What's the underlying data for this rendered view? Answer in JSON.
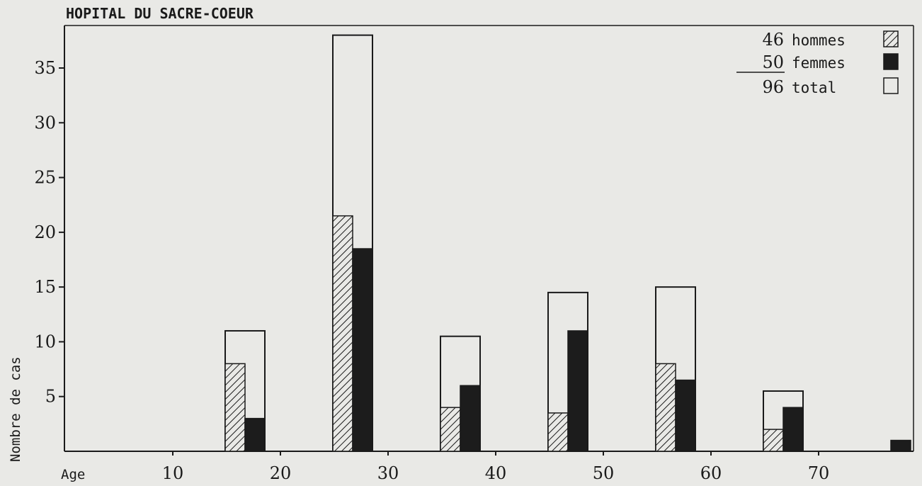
{
  "chart_data": {
    "type": "bar",
    "title": "HOPITAL DU SACRE-COEUR",
    "ylabel": "Nombre de cas",
    "xlabel": "Age",
    "ylim": [
      0,
      38
    ],
    "xlim": [
      0,
      78
    ],
    "x_ticks": [
      10,
      20,
      30,
      40,
      50,
      60,
      70
    ],
    "y_ticks": [
      5,
      10,
      15,
      20,
      25,
      30,
      35
    ],
    "grid": false,
    "legend_position": "top-right",
    "legend": [
      {
        "count": "46",
        "label": "hommes",
        "pattern": "hatched"
      },
      {
        "count": "50",
        "label": "femmes",
        "pattern": "solid-black"
      },
      {
        "count": "96",
        "label": "total",
        "pattern": "empty"
      }
    ],
    "groups": [
      {
        "x_start": 15,
        "total": 11,
        "hommes": 8,
        "femmes": 3
      },
      {
        "x_start": 25,
        "total": 38,
        "hommes": 21.5,
        "femmes": 18.5
      },
      {
        "x_start": 35,
        "total": 10.5,
        "hommes": 4,
        "femmes": 6
      },
      {
        "x_start": 45,
        "total": 14.5,
        "hommes": 3.5,
        "femmes": 11
      },
      {
        "x_start": 55,
        "total": 15,
        "hommes": 8,
        "femmes": 6.5
      },
      {
        "x_start": 65,
        "total": 5.5,
        "hommes": 2,
        "femmes": 4
      },
      {
        "x_start": 75,
        "total": 1,
        "hommes": 0,
        "femmes": 1
      }
    ],
    "colors": {
      "paper": "#e9e9e6",
      "ink": "#1a1a1a",
      "femmes": "#1c1c1c"
    }
  }
}
